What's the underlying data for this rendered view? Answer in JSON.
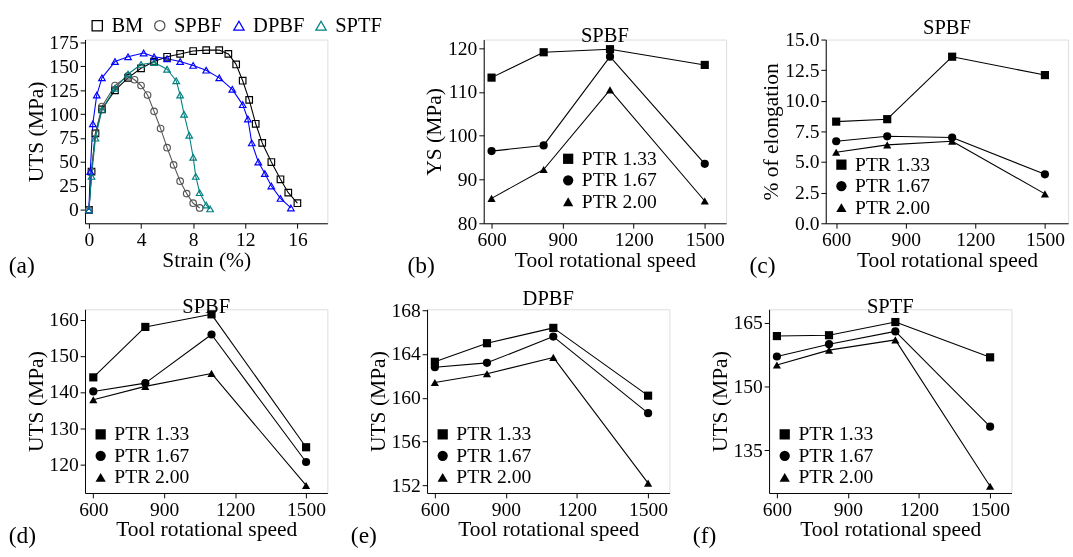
{
  "chart_data": [
    {
      "type": "line",
      "xlabel": "Strain (%)",
      "ylabel": "UTS (MPa)",
      "xlim": [
        -0.3,
        18.3
      ],
      "ylim": [
        -14,
        178
      ],
      "xticks": [
        0,
        4,
        8,
        12,
        16
      ],
      "yticks": [
        0,
        25,
        50,
        75,
        100,
        125,
        150,
        175
      ],
      "legend": "top",
      "annotations": [
        "(a)"
      ],
      "series": [
        {
          "name": "BM",
          "color": "#000000",
          "marker": "square",
          "x": [
            0,
            0.2,
            0.5,
            1,
            2,
            3,
            4,
            5,
            6,
            7,
            8,
            9,
            10,
            10.7,
            11.3,
            11.8,
            12.3,
            12.8,
            13.3,
            14,
            14.7,
            15.3,
            16
          ],
          "values": [
            0,
            40,
            80,
            105,
            125,
            138,
            148,
            155,
            160,
            163,
            166,
            167,
            167,
            163,
            152,
            135,
            115,
            90,
            70,
            50,
            32,
            18,
            7
          ]
        },
        {
          "name": "SPBF",
          "color": "#555555",
          "marker": "circle",
          "x": [
            0,
            0.2,
            0.5,
            1,
            2,
            3,
            3.5,
            4,
            4.5,
            5,
            5.5,
            6,
            6.5,
            7,
            7.5,
            8,
            8.5
          ],
          "values": [
            0,
            40,
            80,
            108,
            130,
            140,
            136,
            130,
            120,
            103,
            85,
            65,
            47,
            30,
            17,
            7,
            2
          ]
        },
        {
          "name": "DPBF",
          "color": "#0000ff",
          "marker": "triangle",
          "x": [
            0,
            0.1,
            0.3,
            0.6,
            1,
            2,
            3,
            4.2,
            5,
            6,
            7,
            8,
            9,
            10,
            11,
            11.8,
            12.2,
            12.5,
            13,
            13.5,
            14,
            14.7,
            15.5
          ],
          "values": [
            0,
            40,
            90,
            120,
            138,
            155,
            160,
            164,
            160,
            158,
            155,
            151,
            146,
            138,
            126,
            110,
            95,
            70,
            50,
            38,
            25,
            12,
            2
          ]
        },
        {
          "name": "SPTF",
          "color": "#008080",
          "marker": "triangle",
          "x": [
            0,
            0.2,
            0.5,
            1,
            2,
            3,
            4,
            5,
            6,
            6.7,
            7,
            7.3,
            7.7,
            8,
            8.2,
            8.5,
            9,
            9.3
          ],
          "values": [
            0,
            35,
            75,
            105,
            127,
            142,
            152,
            154,
            147,
            135,
            120,
            100,
            78,
            55,
            35,
            18,
            5,
            1
          ]
        }
      ]
    },
    {
      "type": "line",
      "title": "SPBF",
      "xlabel": "Tool rotational speed",
      "ylabel": "YS (MPa)",
      "x": [
        600,
        820,
        1100,
        1500
      ],
      "xlim": [
        567,
        1590
      ],
      "ylim": [
        80,
        122
      ],
      "xticks": [
        600,
        900,
        1200,
        1500
      ],
      "yticks": [
        80,
        90,
        100,
        110,
        120
      ],
      "legend": "bottom",
      "annotations": [
        "(b)"
      ],
      "series": [
        {
          "name": "PTR 1.33",
          "color": "#000000",
          "marker": "square",
          "values": [
            113.3,
            119.1,
            119.8,
            116.2
          ]
        },
        {
          "name": "PTR 1.67",
          "color": "#000000",
          "marker": "circle",
          "values": [
            96.5,
            97.8,
            118.1,
            93.6
          ]
        },
        {
          "name": "PTR 2.00",
          "color": "#000000",
          "marker": "triangle",
          "values": [
            85.7,
            92.3,
            110.5,
            85.1
          ]
        }
      ]
    },
    {
      "type": "line",
      "title": "SPBF",
      "xlabel": "Tool rotational speed",
      "ylabel": "% of elongation",
      "x": [
        600,
        820,
        1100,
        1500
      ],
      "xlim": [
        555,
        1600
      ],
      "ylim": [
        0,
        15
      ],
      "xticks": [
        600,
        900,
        1200,
        1500
      ],
      "yticks": [
        {
          "value": 0,
          "label": "0.0"
        },
        2.5,
        {
          "value": 5,
          "label": "5.0"
        },
        7.5,
        {
          "value": 10,
          "label": "10.0"
        },
        12.5,
        {
          "value": 15,
          "label": "15.0"
        }
      ],
      "legend": "bottom left",
      "annotations": [
        "(c)"
      ],
      "series": [
        {
          "name": "PTR 1.33",
          "color": "#000000",
          "marker": "square",
          "values": [
            8.3,
            8.5,
            13.6,
            12.1
          ]
        },
        {
          "name": "PTR 1.67",
          "color": "#000000",
          "marker": "circle",
          "values": [
            6.7,
            7.1,
            7.0,
            4.0
          ]
        },
        {
          "name": "PTR 2.00",
          "color": "#000000",
          "marker": "triangle",
          "values": [
            5.8,
            6.4,
            6.7,
            2.4
          ]
        }
      ]
    },
    {
      "type": "line",
      "title": "SPBF",
      "xlabel": "Tool rotational speed",
      "ylabel": "UTS (MPa)",
      "x": [
        600,
        820,
        1100,
        1500
      ],
      "xlim": [
        565,
        1590
      ],
      "ylim": [
        112,
        163
      ],
      "xticks": [
        600,
        900,
        1200,
        1500
      ],
      "yticks": [
        120,
        130,
        140,
        150,
        160
      ],
      "legend": "bottom left",
      "annotations": [
        "(d)"
      ],
      "series": [
        {
          "name": "PTR 1.33",
          "color": "#000000",
          "marker": "square",
          "values": [
            144.1,
            158.1,
            161.6,
            124.7
          ]
        },
        {
          "name": "PTR 1.67",
          "color": "#000000",
          "marker": "circle",
          "values": [
            140.2,
            142.5,
            156.0,
            120.6
          ]
        },
        {
          "name": "PTR 2.00",
          "color": "#000000",
          "marker": "triangle",
          "values": [
            137.9,
            141.6,
            145.2,
            114.1
          ]
        }
      ]
    },
    {
      "type": "line",
      "title": "DPBF",
      "xlabel": "Tool rotational speed",
      "ylabel": "UTS (MPa)",
      "x": [
        600,
        820,
        1100,
        1500
      ],
      "xlim": [
        567,
        1590
      ],
      "ylim": [
        151.3,
        168.1
      ],
      "xticks": [
        600,
        900,
        1200,
        1500
      ],
      "yticks": [
        152,
        156,
        160,
        164,
        168
      ],
      "legend": "bottom left",
      "annotations": [
        "(e)"
      ],
      "series": [
        {
          "name": "PTR 1.33",
          "color": "#000000",
          "marker": "square",
          "values": [
            163.3,
            165.0,
            166.4,
            160.2
          ]
        },
        {
          "name": "PTR 1.67",
          "color": "#000000",
          "marker": "circle",
          "values": [
            162.8,
            163.2,
            165.6,
            158.6
          ]
        },
        {
          "name": "PTR 2.00",
          "color": "#000000",
          "marker": "triangle",
          "values": [
            161.4,
            162.2,
            163.7,
            152.2
          ]
        }
      ]
    },
    {
      "type": "line",
      "title": "SPTF",
      "xlabel": "Tool rotational speed",
      "ylabel": "UTS (MPa)",
      "x": [
        600,
        820,
        1100,
        1500
      ],
      "xlim": [
        567,
        1590
      ],
      "ylim": [
        125,
        168.2
      ],
      "xticks": [
        600,
        900,
        1200,
        1500
      ],
      "yticks": [
        135,
        150,
        165
      ],
      "legend": "bottom left",
      "annotations": [
        "(f)"
      ],
      "series": [
        {
          "name": "PTR 1.33",
          "color": "#000000",
          "marker": "square",
          "values": [
            161.9,
            162.1,
            165.2,
            156.9
          ]
        },
        {
          "name": "PTR 1.67",
          "color": "#000000",
          "marker": "circle",
          "values": [
            157.1,
            160.0,
            163.0,
            140.6
          ]
        },
        {
          "name": "PTR 2.00",
          "color": "#000000",
          "marker": "triangle",
          "values": [
            155.1,
            158.6,
            161.0,
            126.6
          ]
        }
      ]
    }
  ]
}
